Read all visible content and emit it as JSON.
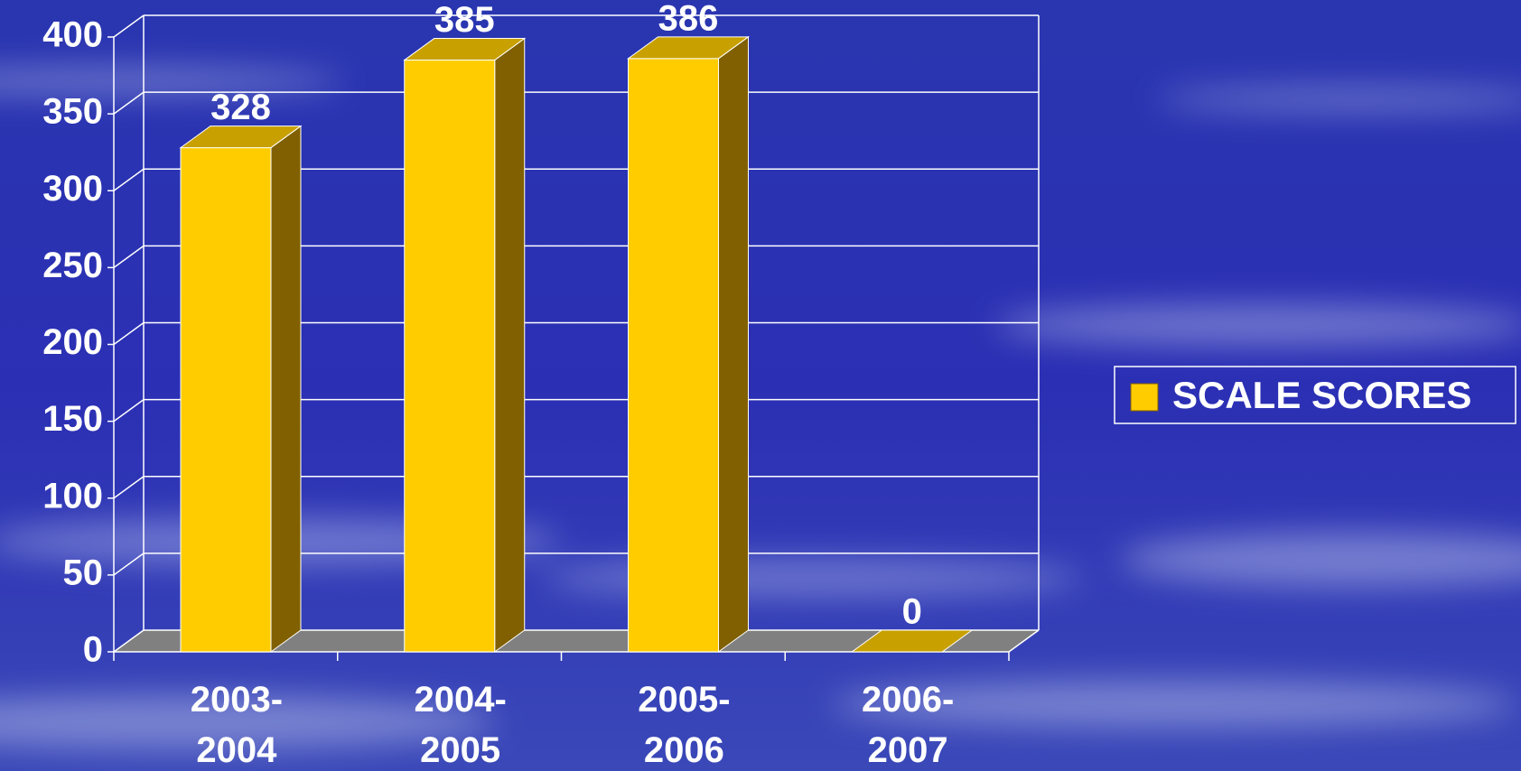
{
  "chart_data": {
    "type": "bar3d",
    "categories": [
      "2003-2004",
      "2004-2005",
      "2005-2006",
      "2006-2007"
    ],
    "series": [
      {
        "name": "SCALE SCORES",
        "color": "#FFCC00",
        "values": [
          328,
          385,
          386,
          0
        ]
      }
    ],
    "ylim": [
      0,
      400
    ],
    "yticks": [
      0,
      50,
      100,
      150,
      200,
      250,
      300,
      350,
      400
    ],
    "grid": true,
    "legend": "right"
  }
}
